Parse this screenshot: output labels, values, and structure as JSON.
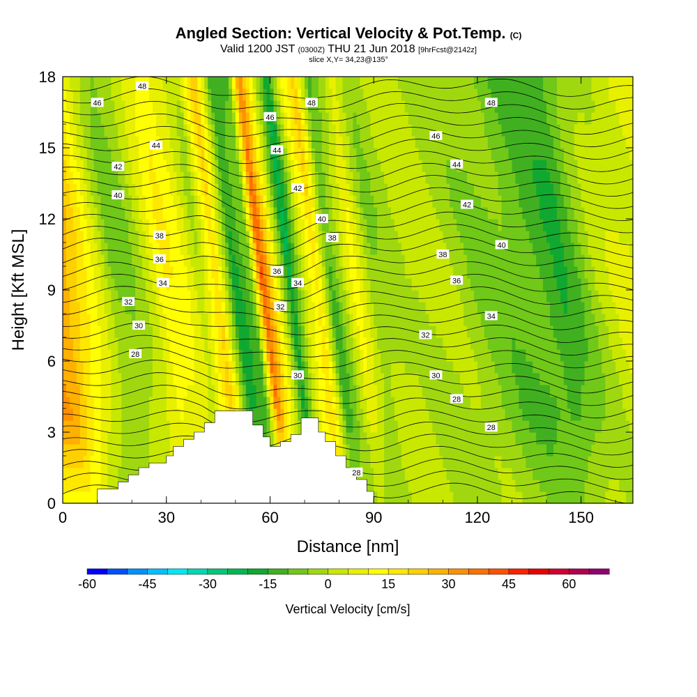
{
  "header": {
    "title_main": "Angled Section: Vertical Velocity & Pot.Temp.",
    "title_unit": "(C)",
    "valid_prefix": "Valid 1200 JST",
    "valid_utc": "(0300Z)",
    "valid_date": "THU 21 Jun 2018",
    "forecast_tag": "[9hrFcst@2142z]",
    "slice_info": "slice X,Y= 34,23@135°"
  },
  "chart_data": {
    "type": "heatmap",
    "xlabel": "Distance [nm]",
    "ylabel": "Height [Kft MSL]",
    "xlim": [
      0,
      165
    ],
    "ylim": [
      0,
      18
    ],
    "x_ticks": [
      0,
      30,
      60,
      90,
      120,
      150
    ],
    "y_ticks": [
      0,
      3,
      6,
      9,
      12,
      15,
      18
    ],
    "colorbar": {
      "title": "Vertical Velocity [cm/s]",
      "min": -60,
      "max": 70,
      "step": 5,
      "tick_values": [
        -60,
        -45,
        -30,
        -15,
        0,
        15,
        30,
        45,
        60
      ],
      "colors": [
        "#0000ff",
        "#0050ff",
        "#0090ff",
        "#00c0ff",
        "#00e8f0",
        "#00d8b0",
        "#00c878",
        "#00b850",
        "#10a830",
        "#40b020",
        "#70c818",
        "#a0d810",
        "#c8e800",
        "#e8f000",
        "#ffff00",
        "#ffe800",
        "#ffd000",
        "#ffb000",
        "#ff9000",
        "#ff7000",
        "#ff5000",
        "#ff2000",
        "#e80000",
        "#d00030",
        "#b00050",
        "#900070"
      ]
    },
    "velocity_bands": [
      {
        "x": 0,
        "w": 30
      },
      {
        "x": 15,
        "w": -6
      },
      {
        "x": 20,
        "w": -4
      },
      {
        "x": 25,
        "w": 4
      },
      {
        "x": 30,
        "w": 14
      },
      {
        "x": 35,
        "w": 10
      },
      {
        "x": 40,
        "w": 0
      },
      {
        "x": 45,
        "w": 22
      },
      {
        "x": 50,
        "w": -16
      },
      {
        "x": 55,
        "w": -8
      },
      {
        "x": 58,
        "w": 38
      },
      {
        "x": 62,
        "w": 10
      },
      {
        "x": 66,
        "w": -20
      },
      {
        "x": 70,
        "w": 6
      },
      {
        "x": 74,
        "w": 20
      },
      {
        "x": 78,
        "w": -12
      },
      {
        "x": 85,
        "w": 10
      },
      {
        "x": 90,
        "w": -4
      },
      {
        "x": 100,
        "w": 2
      },
      {
        "x": 115,
        "w": -2
      },
      {
        "x": 130,
        "w": -8
      },
      {
        "x": 145,
        "w": -14
      },
      {
        "x": 155,
        "w": 0
      },
      {
        "x": 165,
        "w": 6
      }
    ],
    "contour_labels": [
      {
        "x": 23,
        "y": 17.6,
        "text": "48"
      },
      {
        "x": 10,
        "y": 16.9,
        "text": "46"
      },
      {
        "x": 72,
        "y": 16.9,
        "text": "48"
      },
      {
        "x": 124,
        "y": 16.9,
        "text": "48"
      },
      {
        "x": 60,
        "y": 16.3,
        "text": "46"
      },
      {
        "x": 27,
        "y": 15.1,
        "text": "44"
      },
      {
        "x": 62,
        "y": 14.9,
        "text": "44"
      },
      {
        "x": 108,
        "y": 15.5,
        "text": "46"
      },
      {
        "x": 16,
        "y": 14.2,
        "text": "42"
      },
      {
        "x": 114,
        "y": 14.3,
        "text": "44"
      },
      {
        "x": 68,
        "y": 13.3,
        "text": "42"
      },
      {
        "x": 16,
        "y": 13.0,
        "text": "40"
      },
      {
        "x": 117,
        "y": 12.6,
        "text": "42"
      },
      {
        "x": 75,
        "y": 12.0,
        "text": "40"
      },
      {
        "x": 28,
        "y": 11.3,
        "text": "38"
      },
      {
        "x": 78,
        "y": 11.2,
        "text": "38"
      },
      {
        "x": 127,
        "y": 10.9,
        "text": "40"
      },
      {
        "x": 28,
        "y": 10.3,
        "text": "36"
      },
      {
        "x": 110,
        "y": 10.5,
        "text": "38"
      },
      {
        "x": 62,
        "y": 9.8,
        "text": "36"
      },
      {
        "x": 29,
        "y": 9.3,
        "text": "34"
      },
      {
        "x": 68,
        "y": 9.3,
        "text": "34"
      },
      {
        "x": 114,
        "y": 9.4,
        "text": "36"
      },
      {
        "x": 19,
        "y": 8.5,
        "text": "32"
      },
      {
        "x": 63,
        "y": 8.3,
        "text": "32"
      },
      {
        "x": 22,
        "y": 7.5,
        "text": "30"
      },
      {
        "x": 124,
        "y": 7.9,
        "text": "34"
      },
      {
        "x": 105,
        "y": 7.1,
        "text": "32"
      },
      {
        "x": 21,
        "y": 6.3,
        "text": "28"
      },
      {
        "x": 68,
        "y": 5.4,
        "text": "30"
      },
      {
        "x": 108,
        "y": 5.4,
        "text": "30"
      },
      {
        "x": 114,
        "y": 4.4,
        "text": "28"
      },
      {
        "x": 124,
        "y": 3.2,
        "text": "28"
      },
      {
        "x": 85,
        "y": 1.3,
        "text": "28"
      }
    ],
    "terrain": [
      [
        10,
        0.6
      ],
      [
        13,
        0.6
      ],
      [
        16,
        0.9
      ],
      [
        19,
        1.2
      ],
      [
        22,
        1.5
      ],
      [
        25,
        1.7
      ],
      [
        30,
        2.0
      ],
      [
        32,
        2.4
      ],
      [
        35,
        2.7
      ],
      [
        38,
        3.0
      ],
      [
        41,
        3.4
      ],
      [
        44,
        3.9
      ],
      [
        48,
        3.9
      ],
      [
        52,
        3.9
      ],
      [
        55,
        3.3
      ],
      [
        58,
        2.8
      ],
      [
        60,
        2.4
      ],
      [
        63,
        2.6
      ],
      [
        66,
        2.9
      ],
      [
        69,
        3.6
      ],
      [
        72,
        3.6
      ],
      [
        74,
        3.0
      ],
      [
        76,
        2.6
      ],
      [
        79,
        2.0
      ],
      [
        82,
        1.5
      ],
      [
        85,
        1.0
      ],
      [
        88,
        0.5
      ],
      [
        90,
        0.3
      ]
    ]
  }
}
